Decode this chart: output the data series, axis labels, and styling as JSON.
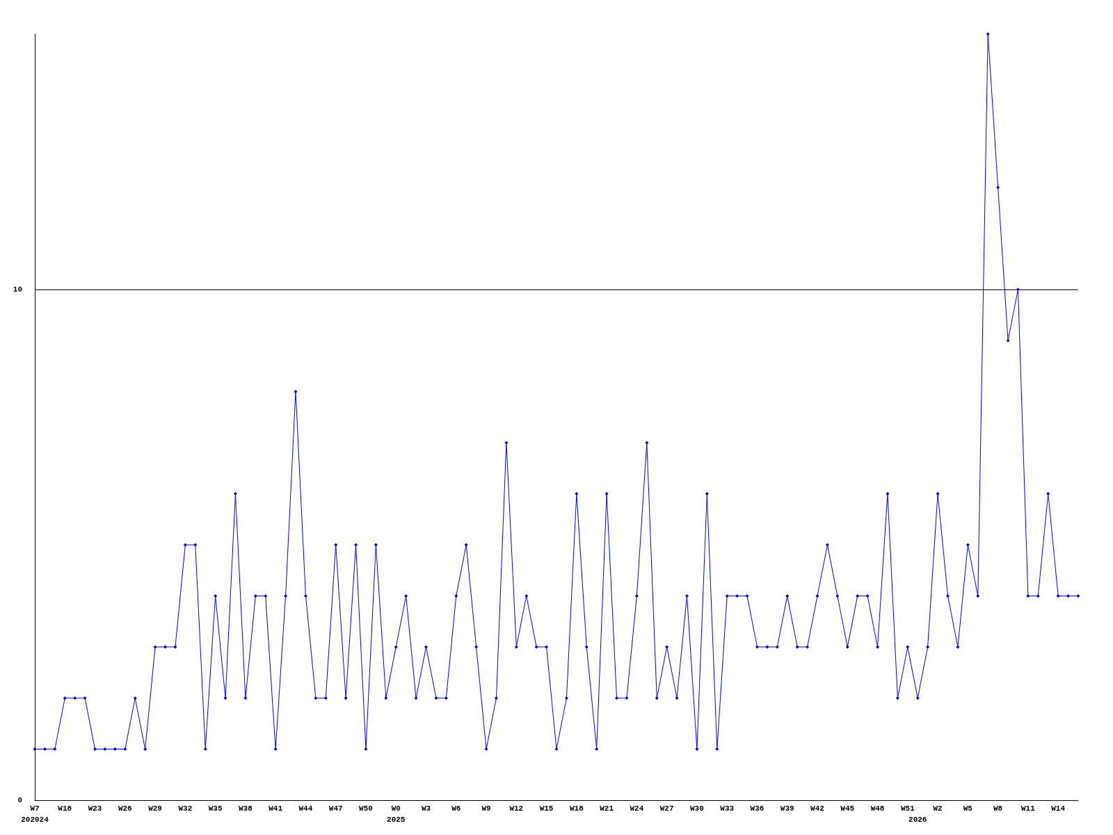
{
  "chart_data": {
    "type": "line",
    "categories": [
      "W7\n202024",
      null,
      null,
      "W18",
      null,
      null,
      "W23",
      null,
      null,
      "W26",
      null,
      null,
      "W29",
      null,
      null,
      "W32",
      null,
      null,
      "W35",
      null,
      null,
      "W38",
      null,
      null,
      "W41",
      null,
      null,
      "W44",
      null,
      null,
      "W47",
      null,
      null,
      "W50",
      null,
      null,
      "W0\n2025",
      null,
      null,
      "W3",
      null,
      null,
      "W6",
      null,
      null,
      "W9",
      null,
      null,
      "W12",
      null,
      null,
      "W15",
      null,
      null,
      "W18",
      null,
      null,
      "W21",
      null,
      null,
      "W24",
      null,
      null,
      "W27",
      null,
      null,
      "W30",
      null,
      null,
      "W33",
      null,
      null,
      "W36",
      null,
      null,
      "W39",
      null,
      null,
      "W42",
      null,
      null,
      "W45",
      null,
      null,
      "W48",
      null,
      null,
      "W51",
      "\n2026",
      null,
      "W2",
      null,
      null,
      "W5",
      null,
      null,
      "W8",
      null,
      null,
      "W11",
      null,
      null,
      "W14",
      null,
      null
    ],
    "series": [
      {
        "color": "#0000ff",
        "values": [
          1,
          1,
          1,
          2,
          2,
          2,
          1,
          1,
          1,
          1,
          2,
          1,
          3,
          3,
          3,
          5,
          5,
          1,
          4,
          2,
          6,
          2,
          4,
          4,
          1,
          4,
          8,
          4,
          2,
          2,
          5,
          2,
          5,
          1,
          5,
          2,
          3,
          4,
          2,
          3,
          2,
          2,
          4,
          5,
          3,
          1,
          2,
          7,
          3,
          4,
          3,
          3,
          1,
          2,
          6,
          3,
          1,
          6,
          2,
          2,
          4,
          7,
          2,
          3,
          2,
          4,
          1,
          6,
          1,
          4,
          4,
          4,
          3,
          3,
          3,
          4,
          3,
          3,
          4,
          5,
          4,
          3,
          4,
          4,
          3,
          6,
          2,
          3,
          2,
          3,
          6,
          4,
          3,
          5,
          4,
          15,
          12,
          9,
          10,
          4,
          4,
          6,
          4,
          4,
          4
        ]
      }
    ],
    "ylim": [
      0,
      15
    ],
    "yticks": [
      0,
      10
    ],
    "grid": "y",
    "marker": "diamond",
    "line_style": "solid"
  }
}
